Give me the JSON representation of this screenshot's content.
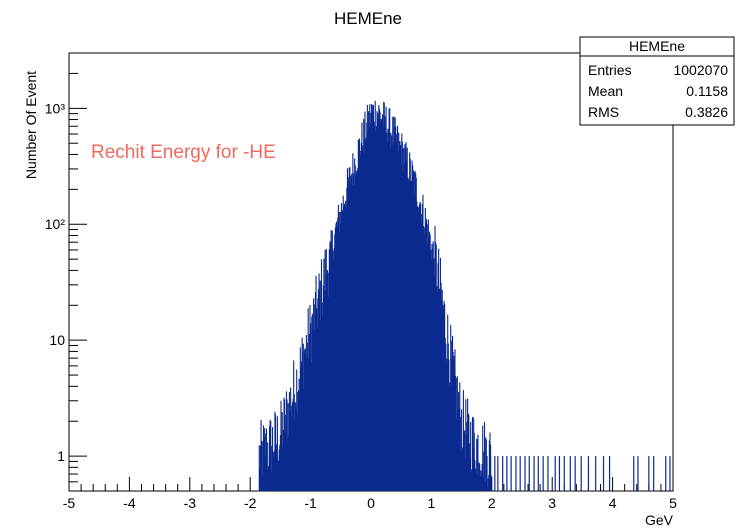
{
  "chart_data": {
    "type": "histogram",
    "title": "HEMEne",
    "xlabel": "GeV",
    "ylabel": "Number Of Event",
    "xlim": [
      -5,
      5
    ],
    "ylim": [
      0.5,
      3000
    ],
    "yscale": "log",
    "x_ticks": [
      {
        "value": -5,
        "label": "-5"
      },
      {
        "value": -4,
        "label": "-4"
      },
      {
        "value": -3,
        "label": "-3"
      },
      {
        "value": -2,
        "label": "-2"
      },
      {
        "value": -1,
        "label": "-1"
      },
      {
        "value": 0,
        "label": "0"
      },
      {
        "value": 1,
        "label": "1"
      },
      {
        "value": 2,
        "label": "2"
      },
      {
        "value": 3,
        "label": "3"
      },
      {
        "value": 4,
        "label": "4"
      },
      {
        "value": 5,
        "label": "5"
      }
    ],
    "y_ticks": [
      {
        "value": 1,
        "label": "1"
      },
      {
        "value": 10,
        "label": "10"
      },
      {
        "value": 100,
        "label": "10²"
      },
      {
        "value": 1000,
        "label": "10³"
      }
    ],
    "line_color": "#0b2a8f",
    "annotation": {
      "text": "Rechit Energy for -HE",
      "color": "#f06a5e"
    },
    "stats_box": {
      "title": "HEMEne",
      "rows": [
        {
          "label": "Entries",
          "value": "1002070"
        },
        {
          "label": "Mean",
          "value": "0.1158"
        },
        {
          "label": "RMS",
          "value": "0.3826"
        }
      ]
    },
    "series": [
      {
        "peak_points": [
          {
            "x": -1.85,
            "y": 1
          },
          {
            "x": -1.5,
            "y": 1.5
          },
          {
            "x": -1.2,
            "y": 5
          },
          {
            "x": -1.0,
            "y": 12
          },
          {
            "x": -0.8,
            "y": 30
          },
          {
            "x": -0.6,
            "y": 80
          },
          {
            "x": -0.4,
            "y": 200
          },
          {
            "x": -0.2,
            "y": 450
          },
          {
            "x": 0.0,
            "y": 900
          },
          {
            "x": 0.1,
            "y": 950
          },
          {
            "x": 0.3,
            "y": 700
          },
          {
            "x": 0.5,
            "y": 450
          },
          {
            "x": 0.7,
            "y": 250
          },
          {
            "x": 0.9,
            "y": 110
          },
          {
            "x": 1.1,
            "y": 40
          },
          {
            "x": 1.3,
            "y": 8
          },
          {
            "x": 1.5,
            "y": 2
          },
          {
            "x": 1.7,
            "y": 1.3
          },
          {
            "x": 2.0,
            "y": 1
          }
        ],
        "sparse_bins_at_1": [
          -1.75,
          -1.68,
          -1.62,
          -1.58,
          -1.52,
          1.92,
          1.98,
          2.05,
          2.1,
          2.18,
          2.25,
          2.32,
          2.4,
          2.47,
          2.55,
          2.62,
          2.7,
          2.77,
          2.85,
          2.93,
          3.05,
          3.12,
          3.2,
          3.3,
          3.38,
          3.48,
          3.6,
          3.72,
          3.85,
          3.95,
          4.35,
          4.42,
          4.6,
          4.68,
          4.88,
          4.95
        ]
      }
    ]
  }
}
